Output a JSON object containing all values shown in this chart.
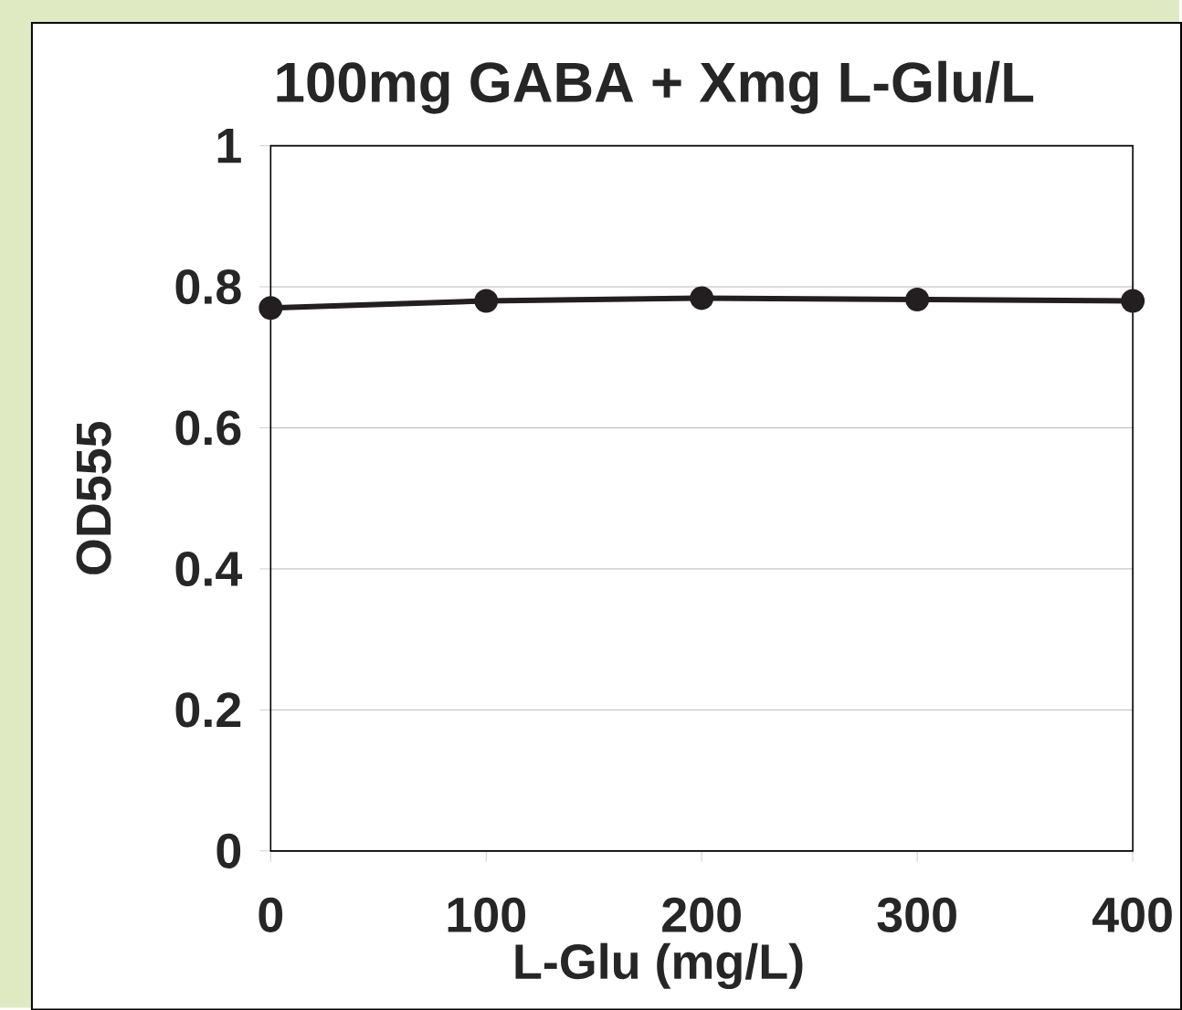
{
  "chart_data": {
    "type": "line",
    "title": "100mg GABA + Xmg L-Glu/L",
    "xlabel": "L-Glu (mg/L)",
    "ylabel": "OD555",
    "x": [
      0,
      100,
      200,
      300,
      400
    ],
    "series": [
      {
        "color": "#231f20",
        "values": [
          0.77,
          0.78,
          0.784,
          0.782,
          0.78
        ]
      }
    ],
    "xlim": [
      0,
      400
    ],
    "xticks": [
      0,
      100,
      200,
      300,
      400
    ],
    "ylim": [
      0,
      1
    ],
    "yticks": [
      0,
      0.2,
      0.4,
      0.6,
      0.8,
      1
    ],
    "grid": "y",
    "marker": "circle",
    "line_style": "solid"
  }
}
